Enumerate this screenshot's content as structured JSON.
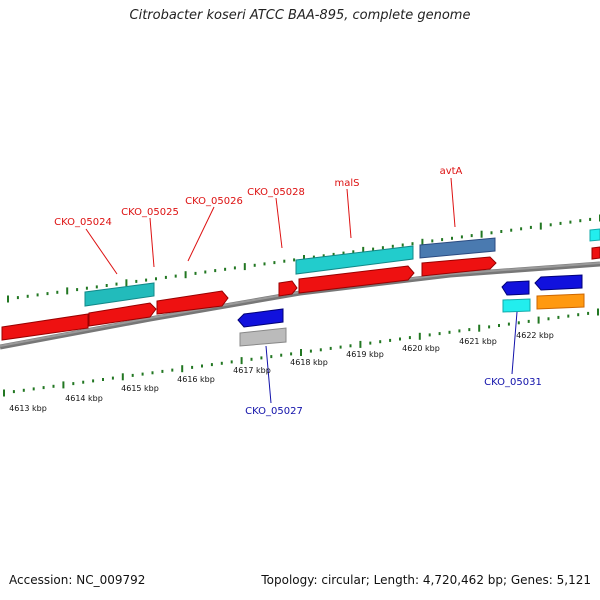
{
  "title": "Citrobacter koseri ATCC BAA-895, complete genome",
  "footer": {
    "accession": "Accession: NC_009792",
    "summary": "Topology: circular; Length: 4,720,462 bp; Genes: 5,121"
  },
  "ruler_labels": [
    "4613 kbp",
    "4614 kbp",
    "4615 kbp",
    "4616 kbp",
    "4617 kbp",
    "4618 kbp",
    "4619 kbp",
    "4620 kbp",
    "4621 kbp",
    "4622 kbp"
  ],
  "gene_labels": {
    "forward": [
      "CKO_05024",
      "CKO_05025",
      "CKO_05026",
      "CKO_05028",
      "malS",
      "avtA"
    ],
    "reverse": [
      "CKO_05027",
      "CKO_05031"
    ]
  },
  "colors": {
    "cds": "#ee1111",
    "rna_cyan": "#22cccc",
    "steel": "#4a7ab0",
    "reverse_cds": "#1111dd",
    "gray": "#bbbbbb",
    "orange": "#ff9910",
    "light_cyan": "#22eeee",
    "backbone": "#888888",
    "ticks": "#227722",
    "fwd_label": "#dd1111",
    "rev_label": "#1111aa"
  }
}
